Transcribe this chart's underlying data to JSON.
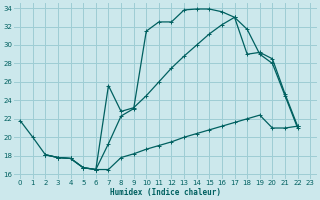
{
  "xlabel": "Humidex (Indice chaleur)",
  "bg_color": "#cce8ec",
  "grid_color": "#9ecdd4",
  "line_color": "#006060",
  "xlim": [
    -0.5,
    23.5
  ],
  "ylim": [
    15.5,
    34.5
  ],
  "xticks": [
    0,
    1,
    2,
    3,
    4,
    5,
    6,
    7,
    8,
    9,
    10,
    11,
    12,
    13,
    14,
    15,
    16,
    17,
    18,
    19,
    20,
    21,
    22,
    23
  ],
  "yticks": [
    16,
    18,
    20,
    22,
    24,
    26,
    28,
    30,
    32,
    34
  ],
  "line1_x": [
    0,
    1,
    2,
    3,
    4,
    5,
    6,
    7,
    8,
    9,
    10,
    11,
    12,
    13,
    14,
    15,
    16,
    17,
    18,
    19,
    20,
    21,
    22
  ],
  "line1_y": [
    21.8,
    20.0,
    18.1,
    17.8,
    17.7,
    16.7,
    16.5,
    19.3,
    22.3,
    23.1,
    31.5,
    32.5,
    32.5,
    33.8,
    33.9,
    33.9,
    33.6,
    33.0,
    31.7,
    29.0,
    28.0,
    24.5,
    21.0
  ],
  "line2_x": [
    2,
    3,
    4,
    5,
    6,
    7,
    8,
    9,
    10,
    11,
    12,
    13,
    14,
    15,
    16,
    17,
    18,
    19,
    20,
    21,
    22
  ],
  "line2_y": [
    18.1,
    17.8,
    17.7,
    16.7,
    16.5,
    16.5,
    17.8,
    18.2,
    18.7,
    19.1,
    19.5,
    20.0,
    20.4,
    20.8,
    21.2,
    21.6,
    22.0,
    22.4,
    21.0,
    21.0,
    21.2
  ],
  "line3_x": [
    2,
    3,
    4,
    5,
    6,
    7,
    8,
    9,
    10,
    11,
    12,
    13,
    14,
    15,
    16,
    17,
    18,
    19,
    20,
    21,
    22
  ],
  "line3_y": [
    18.1,
    17.8,
    17.7,
    16.7,
    16.5,
    25.6,
    22.8,
    23.2,
    24.5,
    26.0,
    27.5,
    28.8,
    30.0,
    31.2,
    32.2,
    33.0,
    29.0,
    29.2,
    28.5,
    24.7,
    21.2
  ]
}
